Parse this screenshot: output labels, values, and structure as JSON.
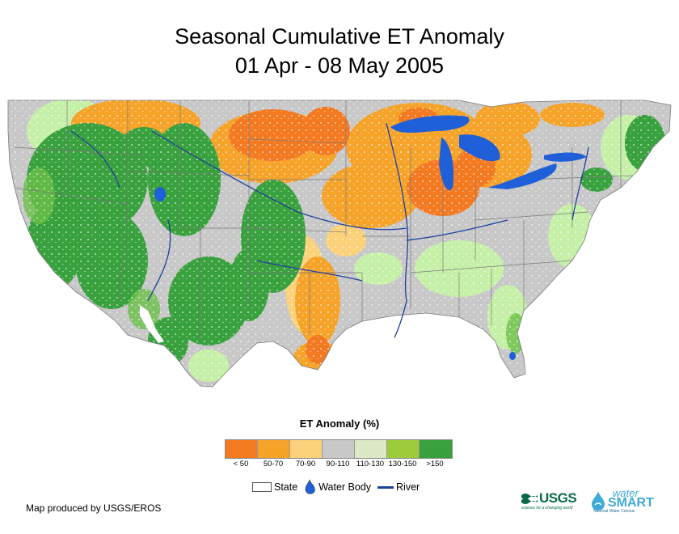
{
  "title": {
    "line1": "Seasonal Cumulative ET Anomaly",
    "line2": "01 Apr - 08 May 2005"
  },
  "legend": {
    "title": "ET Anomaly (%)",
    "classes": [
      {
        "label": "< 50",
        "color": "#f47a22"
      },
      {
        "label": "50-70",
        "color": "#f6a32a"
      },
      {
        "label": "70-90",
        "color": "#fbd17a"
      },
      {
        "label": "90-110",
        "color": "#c8c8c8"
      },
      {
        "label": "110-130",
        "color": "#dde9c6"
      },
      {
        "label": "130-150",
        "color": "#9dcb3c"
      },
      {
        "label": ">150",
        "color": "#3aa13f"
      }
    ],
    "keys": {
      "state": "State",
      "water_body": "Water Body",
      "river": "River"
    }
  },
  "map_colors": {
    "water": "#1f5fd8",
    "river": "#1f3f9c",
    "state_line": "#7a7a7a",
    "grass_light": "#c6f0a8"
  },
  "credit": "Map produced by USGS/EROS",
  "logos": {
    "usgs": "USGS",
    "usgs_tagline": "science for a changing world",
    "watersmart_top": "water",
    "watersmart_main": "SMART",
    "watersmart_sub": "National Water Census"
  }
}
